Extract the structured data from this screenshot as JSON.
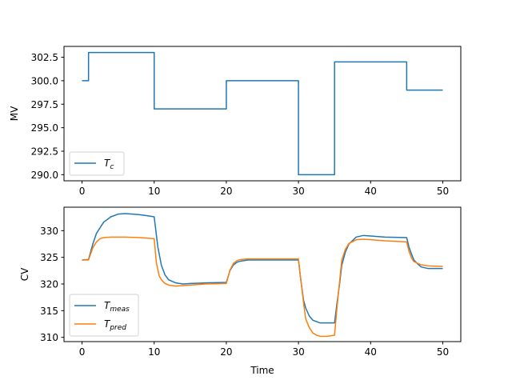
{
  "chart_data": [
    {
      "type": "line",
      "title": "",
      "xlabel": "",
      "ylabel": "MV",
      "xlim": [
        -2.5,
        52.5
      ],
      "ylim": [
        289.35,
        303.65
      ],
      "xticks": [
        0,
        10,
        20,
        30,
        40,
        50
      ],
      "xtick_labels": [
        "0",
        "10",
        "20",
        "30",
        "40",
        "50"
      ],
      "yticks": [
        290.0,
        292.5,
        295.0,
        297.5,
        300.0,
        302.5
      ],
      "ytick_labels": [
        "290.0",
        "292.5",
        "295.0",
        "297.5",
        "300.0",
        "302.5"
      ],
      "legend": "lower-left",
      "grid": false,
      "series": [
        {
          "name": "T",
          "name_sub": "c",
          "color": "#1f77b4",
          "x": [
            0,
            0.9,
            0.9,
            10,
            10,
            20,
            20,
            30,
            30,
            35,
            35,
            45,
            45,
            50
          ],
          "values": [
            300,
            300,
            303,
            303,
            297,
            297,
            300,
            300,
            290,
            290,
            302,
            302,
            299,
            299
          ]
        }
      ]
    },
    {
      "type": "line",
      "title": "",
      "xlabel": "Time",
      "ylabel": "CV",
      "xlim": [
        -2.5,
        52.5
      ],
      "ylim": [
        309.2,
        334.4
      ],
      "xticks": [
        0,
        10,
        20,
        30,
        40,
        50
      ],
      "xtick_labels": [
        "0",
        "10",
        "20",
        "30",
        "40",
        "50"
      ],
      "yticks": [
        310,
        315,
        320,
        325,
        330
      ],
      "ytick_labels": [
        "310",
        "315",
        "320",
        "325",
        "330"
      ],
      "legend": "lower-left",
      "grid": false,
      "series": [
        {
          "name": "T",
          "name_sub": "meas",
          "color": "#1f77b4",
          "x": [
            0,
            0.9,
            1.5,
            2,
            3,
            4,
            5,
            6,
            7,
            8,
            9,
            10,
            10.5,
            11,
            11.5,
            12,
            13,
            14,
            15,
            17,
            20,
            20.5,
            21,
            21.5,
            22,
            23,
            24,
            26,
            30,
            30.3,
            30.7,
            31,
            31.5,
            32,
            33,
            35,
            35.3,
            35.7,
            36,
            36.5,
            37,
            38,
            39,
            40,
            42,
            45,
            45.3,
            45.7,
            46,
            46.5,
            47,
            48,
            50
          ],
          "values": [
            324.5,
            324.6,
            327.5,
            329.5,
            331.6,
            332.6,
            333.1,
            333.2,
            333.1,
            333.0,
            332.8,
            332.6,
            327.0,
            323.5,
            321.7,
            320.8,
            320.2,
            320.0,
            320.1,
            320.2,
            320.3,
            322.5,
            323.6,
            324.1,
            324.3,
            324.5,
            324.5,
            324.5,
            324.5,
            321.0,
            317.0,
            315.5,
            314.0,
            313.2,
            312.7,
            312.7,
            316.0,
            320.0,
            323.5,
            326.0,
            327.5,
            328.8,
            329.1,
            329.0,
            328.8,
            328.7,
            327.0,
            325.5,
            324.5,
            323.8,
            323.2,
            322.9,
            322.9
          ]
        },
        {
          "name": "T",
          "name_sub": "pred",
          "color": "#ff7f0e",
          "x": [
            0,
            0.9,
            1.5,
            2,
            2.5,
            3,
            4,
            5,
            6,
            8,
            10,
            10.3,
            10.7,
            11,
            11.5,
            12,
            13,
            15,
            17,
            20,
            20.5,
            21,
            21.5,
            22,
            23,
            25,
            28,
            30,
            30.3,
            30.7,
            31,
            31.5,
            32,
            32.5,
            33,
            34,
            35,
            35.3,
            35.7,
            36,
            36.5,
            37,
            38,
            39,
            40,
            42,
            45,
            45.3,
            45.7,
            46,
            46.5,
            47,
            48,
            50
          ],
          "values": [
            324.5,
            324.5,
            326.8,
            327.9,
            328.5,
            328.7,
            328.8,
            328.8,
            328.8,
            328.7,
            328.5,
            324.0,
            321.5,
            320.8,
            320.1,
            319.8,
            319.6,
            319.8,
            320.0,
            320.1,
            322.6,
            323.9,
            324.4,
            324.6,
            324.7,
            324.7,
            324.7,
            324.7,
            321.0,
            316.5,
            313.5,
            311.8,
            310.8,
            310.4,
            310.2,
            310.2,
            310.4,
            315.0,
            320.5,
            324.5,
            326.5,
            327.6,
            328.3,
            328.4,
            328.3,
            328.1,
            327.9,
            326.2,
            324.8,
            324.2,
            323.9,
            323.6,
            323.4,
            323.3
          ]
        }
      ]
    }
  ]
}
